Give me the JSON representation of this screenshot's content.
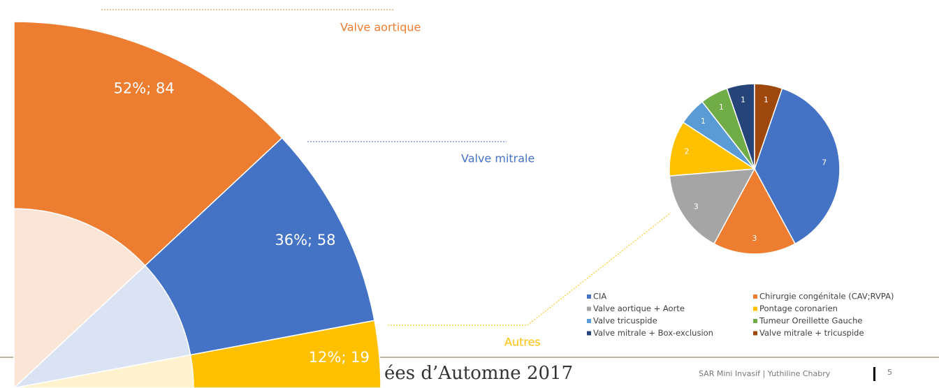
{
  "chart_data": [
    {
      "type": "pie",
      "categories": [
        "Valve aortique",
        "Valve mitrale",
        "Autres"
      ],
      "values": [
        84,
        58,
        19
      ],
      "value_labels": [
        "52%; 84",
        "36%; 58",
        "12%; 19"
      ],
      "colors": [
        "#ed7d31",
        "#4472c4",
        "#ffc000"
      ],
      "inner_colors": [
        "#fbe5d6",
        "#dae3f3",
        "#fff2cc"
      ]
    },
    {
      "type": "pie",
      "categories": [
        "CIA",
        "Chirurgie congénitale (CAV;RVPA)",
        "Valve aortique + Aorte",
        "Pontage coronarien",
        "Valve tricuspide",
        "Tumeur Oreillette Gauche",
        "Valve mitrale + Box-exclusion",
        "Valve mitrale + tricuspide"
      ],
      "values": [
        7,
        3,
        3,
        2,
        1,
        1,
        1,
        1
      ],
      "colors": [
        "#4472c4",
        "#ed7d31",
        "#a5a5a5",
        "#ffc000",
        "#5b9bd5",
        "#70ad47",
        "#264478",
        "#9e480e"
      ]
    }
  ],
  "footer": {
    "event": "ées d’Automne 2017",
    "author": "SAR Mini Invasif | Yuthiline Chabry",
    "page": "5"
  }
}
